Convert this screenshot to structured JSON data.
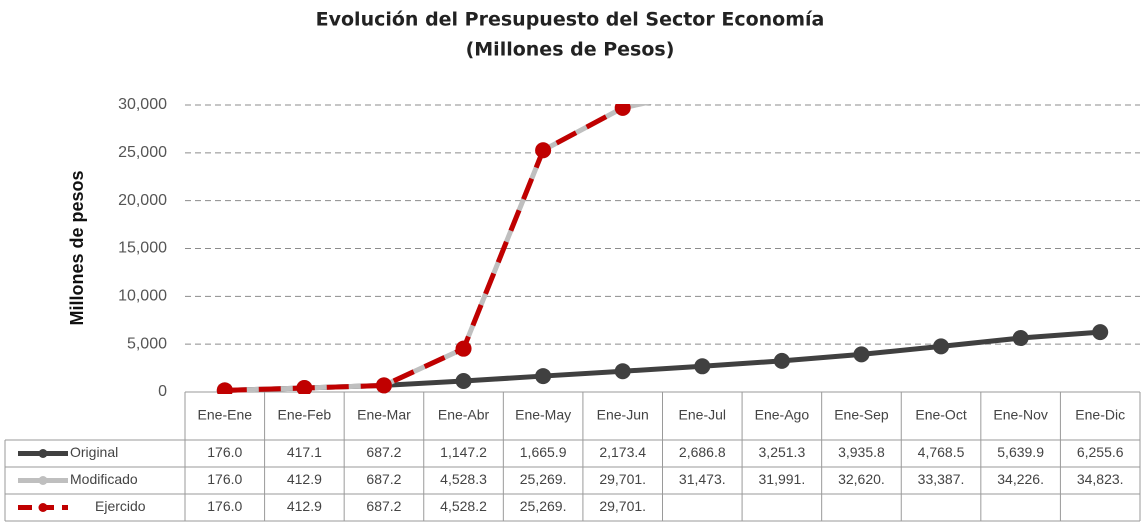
{
  "chart_data": {
    "type": "line",
    "title": "Evolución del Presupuesto del Sector Economía",
    "subtitle": "(Millones de Pesos)",
    "y_label": "Millones de pesos",
    "categories": [
      "Ene-Ene",
      "Ene-Feb",
      "Ene-Mar",
      "Ene-Abr",
      "Ene-May",
      "Ene-Jun",
      "Ene-Jul",
      "Ene-Ago",
      "Ene-Sep",
      "Ene-Oct",
      "Ene-Nov",
      "Ene-Dic"
    ],
    "ylim": [
      0,
      30000
    ],
    "yticks": [
      0,
      {
        "value": 5000,
        "label": "5,000"
      },
      {
        "value": 10000,
        "label": "10,000"
      },
      {
        "value": 15000,
        "label": "15,000"
      },
      {
        "value": 20000,
        "label": "20,000"
      },
      {
        "value": 25000,
        "label": "25,000"
      },
      {
        "value": 30000,
        "label": "30,000"
      }
    ],
    "grid": true,
    "series": [
      {
        "name": "Original",
        "color": "#404040",
        "dashed": false,
        "values": [
          176.0,
          417.1,
          687.2,
          1147.2,
          1665.9,
          2173.4,
          2686.8,
          3251.3,
          3935.8,
          4768.5,
          5639.9,
          6255.6
        ],
        "value_labels": [
          "176.0",
          "417.1",
          "687.2",
          "1,147.2",
          "1,665.9",
          "2,173.4",
          "2,686.8",
          "3,251.3",
          "3,935.8",
          "4,768.5",
          "5,639.9",
          "6,255.6"
        ]
      },
      {
        "name": "Modificado",
        "color": "#bfbfbf",
        "dashed": false,
        "values": [
          176.0,
          412.9,
          687.2,
          4528.3,
          25269,
          29701,
          31473,
          31991,
          32620,
          33387,
          34226,
          34823
        ],
        "value_labels": [
          "176.0",
          "412.9",
          "687.2",
          "4,528.3",
          "25,269.",
          "29,701.",
          "31,473.",
          "31,991.",
          "32,620.",
          "33,387.",
          "34,226.",
          "34,823."
        ]
      },
      {
        "name": "Ejercido",
        "color": "#c00000",
        "dashed": true,
        "values": [
          176.0,
          412.9,
          687.2,
          4528.2,
          25269,
          29701,
          null,
          null,
          null,
          null,
          null,
          null
        ],
        "value_labels": [
          "176.0",
          "412.9",
          "687.2",
          "4,528.2",
          "25,269.",
          "29,701.",
          null,
          null,
          null,
          null,
          null,
          null
        ]
      }
    ]
  }
}
